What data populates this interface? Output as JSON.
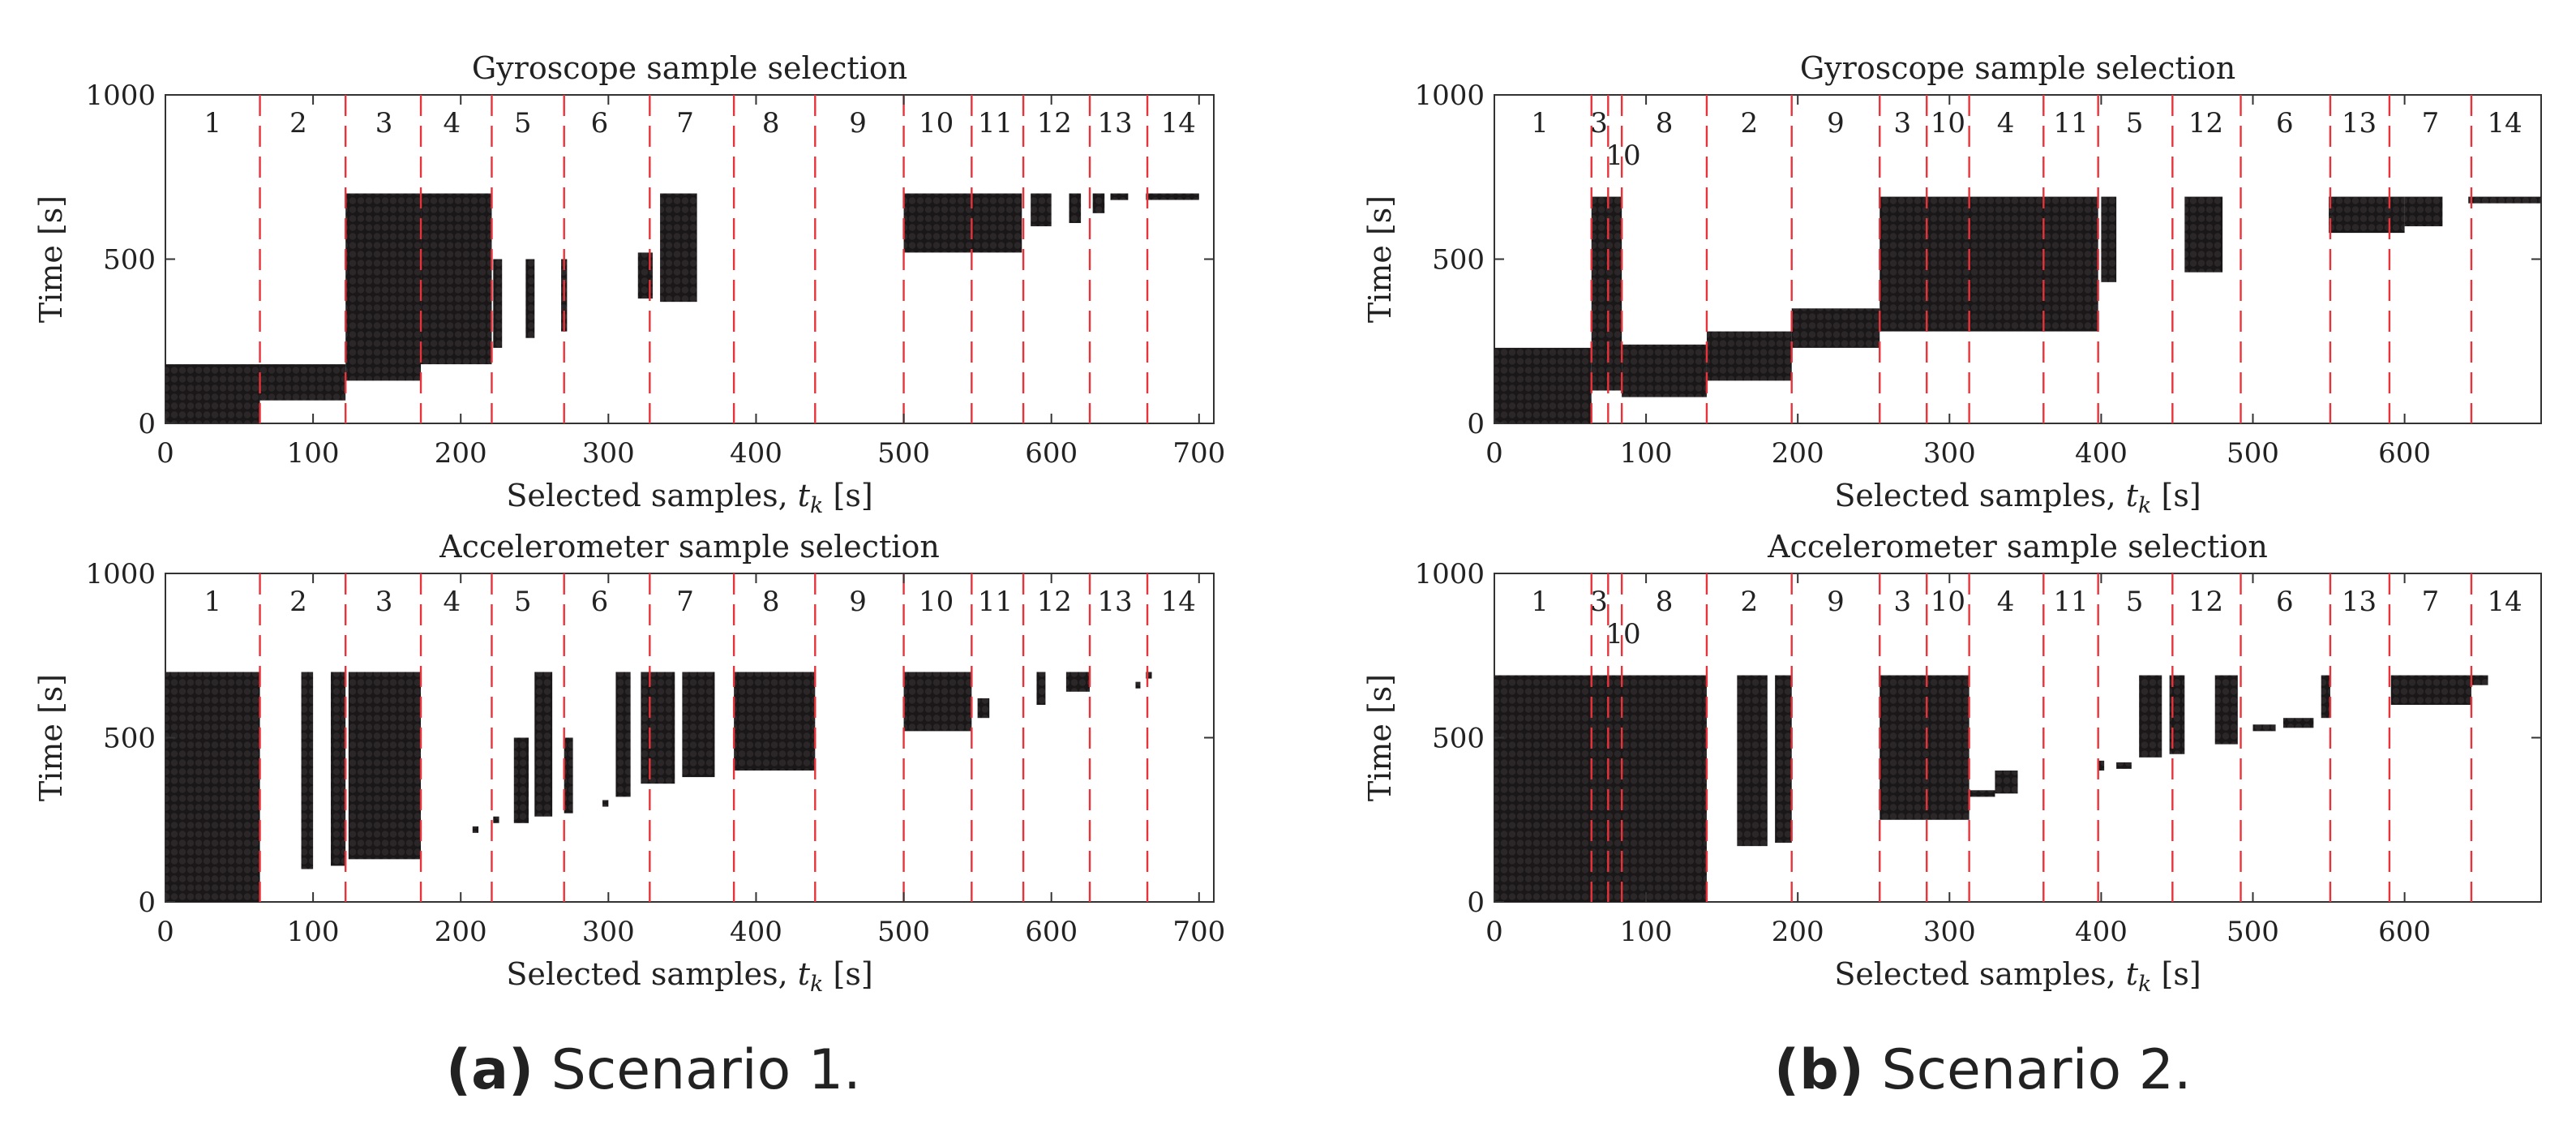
{
  "captions": [
    {
      "label": "(a)",
      "text": "Scenario 1."
    },
    {
      "label": "(b)",
      "text": "Scenario 2."
    }
  ],
  "chart_data": [
    {
      "type": "scatter",
      "scenario": "Scenario 1",
      "title": "Gyroscope sample selection",
      "xlabel": "Selected samples, t_k [s]",
      "ylabel": "Time [s]",
      "xlim": [
        0,
        710
      ],
      "ylim": [
        0,
        1000
      ],
      "xticks": [
        0,
        100,
        200,
        300,
        400,
        500,
        600,
        700
      ],
      "yticks": [
        0,
        500,
        1000
      ],
      "boundaries": [
        64,
        122,
        173,
        221,
        270,
        328,
        385,
        440,
        500,
        546,
        581,
        626,
        665
      ],
      "segment_labels": [
        {
          "label": "1",
          "x": 32
        },
        {
          "label": "2",
          "x": 90
        },
        {
          "label": "3",
          "x": 148
        },
        {
          "label": "4",
          "x": 194
        },
        {
          "label": "5",
          "x": 242
        },
        {
          "label": "6",
          "x": 294
        },
        {
          "label": "7",
          "x": 352
        },
        {
          "label": "8",
          "x": 410
        },
        {
          "label": "9",
          "x": 469
        },
        {
          "label": "10",
          "x": 522
        },
        {
          "label": "11",
          "x": 562
        },
        {
          "label": "12",
          "x": 602
        },
        {
          "label": "13",
          "x": 643
        },
        {
          "label": "14",
          "x": 686
        }
      ],
      "blocks": [
        [
          0,
          64,
          0,
          180
        ],
        [
          64,
          122,
          70,
          180
        ],
        [
          122,
          173,
          130,
          700
        ],
        [
          173,
          221,
          180,
          700
        ],
        [
          222,
          228,
          230,
          500
        ],
        [
          244,
          250,
          260,
          500
        ],
        [
          268,
          272,
          280,
          500
        ],
        [
          320,
          330,
          380,
          520
        ],
        [
          335,
          360,
          370,
          700
        ],
        [
          500,
          580,
          520,
          700
        ],
        [
          586,
          600,
          600,
          700
        ],
        [
          612,
          620,
          610,
          700
        ],
        [
          628,
          636,
          640,
          700
        ],
        [
          640,
          652,
          680,
          700
        ],
        [
          664,
          700,
          690,
          700
        ]
      ]
    },
    {
      "type": "scatter",
      "scenario": "Scenario 1",
      "title": "Accelerometer sample selection",
      "xlabel": "Selected samples, t_k [s]",
      "ylabel": "Time [s]",
      "xlim": [
        0,
        710
      ],
      "ylim": [
        0,
        1000
      ],
      "xticks": [
        0,
        100,
        200,
        300,
        400,
        500,
        600,
        700
      ],
      "yticks": [
        0,
        500,
        1000
      ],
      "boundaries": [
        64,
        122,
        173,
        221,
        270,
        328,
        385,
        440,
        500,
        546,
        581,
        626,
        665
      ],
      "segment_labels": [
        {
          "label": "1",
          "x": 32
        },
        {
          "label": "2",
          "x": 90
        },
        {
          "label": "3",
          "x": 148
        },
        {
          "label": "4",
          "x": 194
        },
        {
          "label": "5",
          "x": 242
        },
        {
          "label": "6",
          "x": 294
        },
        {
          "label": "7",
          "x": 352
        },
        {
          "label": "8",
          "x": 410
        },
        {
          "label": "9",
          "x": 469
        },
        {
          "label": "10",
          "x": 522
        },
        {
          "label": "11",
          "x": 562
        },
        {
          "label": "12",
          "x": 602
        },
        {
          "label": "13",
          "x": 643
        },
        {
          "label": "14",
          "x": 686
        }
      ],
      "blocks": [
        [
          0,
          64,
          0,
          700
        ],
        [
          92,
          100,
          100,
          700
        ],
        [
          112,
          122,
          110,
          700
        ],
        [
          124,
          173,
          130,
          700
        ],
        [
          208,
          212,
          215,
          230
        ],
        [
          222,
          226,
          240,
          260
        ],
        [
          236,
          246,
          240,
          500
        ],
        [
          250,
          262,
          260,
          700
        ],
        [
          270,
          276,
          270,
          500
        ],
        [
          296,
          300,
          290,
          310
        ],
        [
          305,
          315,
          320,
          700
        ],
        [
          322,
          345,
          360,
          700
        ],
        [
          350,
          372,
          380,
          700
        ],
        [
          385,
          440,
          400,
          700
        ],
        [
          500,
          546,
          520,
          700
        ],
        [
          550,
          558,
          560,
          620
        ],
        [
          590,
          596,
          600,
          700
        ],
        [
          610,
          626,
          640,
          700
        ],
        [
          657,
          660,
          650,
          670
        ],
        [
          664,
          668,
          680,
          700
        ]
      ]
    },
    {
      "type": "scatter",
      "scenario": "Scenario 2",
      "title": "Gyroscope sample selection",
      "xlabel": "Selected samples, t_k [s]",
      "ylabel": "Time [s]",
      "xlim": [
        0,
        690
      ],
      "ylim": [
        0,
        1000
      ],
      "xticks": [
        0,
        100,
        200,
        300,
        400,
        500,
        600
      ],
      "yticks": [
        0,
        500,
        1000
      ],
      "boundaries": [
        64,
        75,
        84,
        140,
        196,
        254,
        285,
        313,
        362,
        398,
        447,
        492,
        551,
        590,
        644
      ],
      "segment_labels": [
        {
          "label": "1",
          "x": 30,
          "row": 0
        },
        {
          "label": "3",
          "x": 69,
          "row": 0
        },
        {
          "label": "10",
          "x": 85,
          "row": 1
        },
        {
          "label": "8",
          "x": 112,
          "row": 0
        },
        {
          "label": "2",
          "x": 168,
          "row": 0
        },
        {
          "label": "9",
          "x": 225,
          "row": 0
        },
        {
          "label": "3",
          "x": 269,
          "row": 0
        },
        {
          "label": "10",
          "x": 299,
          "row": 0
        },
        {
          "label": "4",
          "x": 337,
          "row": 0
        },
        {
          "label": "11",
          "x": 380,
          "row": 0
        },
        {
          "label": "5",
          "x": 422,
          "row": 0
        },
        {
          "label": "12",
          "x": 469,
          "row": 0
        },
        {
          "label": "6",
          "x": 521,
          "row": 0
        },
        {
          "label": "13",
          "x": 570,
          "row": 0
        },
        {
          "label": "7",
          "x": 617,
          "row": 0
        },
        {
          "label": "14",
          "x": 666,
          "row": 0
        }
      ],
      "blocks": [
        [
          0,
          64,
          0,
          230
        ],
        [
          64,
          84,
          100,
          690
        ],
        [
          84,
          140,
          80,
          240
        ],
        [
          140,
          196,
          130,
          280
        ],
        [
          196,
          254,
          230,
          350
        ],
        [
          254,
          398,
          280,
          690
        ],
        [
          400,
          410,
          430,
          690
        ],
        [
          455,
          480,
          460,
          690
        ],
        [
          550,
          600,
          580,
          690
        ],
        [
          600,
          625,
          600,
          690
        ],
        [
          642,
          690,
          670,
          690
        ]
      ]
    },
    {
      "type": "scatter",
      "scenario": "Scenario 2",
      "title": "Accelerometer sample selection",
      "xlabel": "Selected samples, t_k [s]",
      "ylabel": "Time [s]",
      "xlim": [
        0,
        690
      ],
      "ylim": [
        0,
        1000
      ],
      "xticks": [
        0,
        100,
        200,
        300,
        400,
        500,
        600
      ],
      "yticks": [
        0,
        500,
        1000
      ],
      "boundaries": [
        64,
        75,
        84,
        140,
        196,
        254,
        285,
        313,
        362,
        398,
        447,
        492,
        551,
        590,
        644
      ],
      "segment_labels": [
        {
          "label": "1",
          "x": 30,
          "row": 0
        },
        {
          "label": "3",
          "x": 69,
          "row": 0
        },
        {
          "label": "10",
          "x": 85,
          "row": 1
        },
        {
          "label": "8",
          "x": 112,
          "row": 0
        },
        {
          "label": "2",
          "x": 168,
          "row": 0
        },
        {
          "label": "9",
          "x": 225,
          "row": 0
        },
        {
          "label": "3",
          "x": 269,
          "row": 0
        },
        {
          "label": "10",
          "x": 299,
          "row": 0
        },
        {
          "label": "4",
          "x": 337,
          "row": 0
        },
        {
          "label": "11",
          "x": 380,
          "row": 0
        },
        {
          "label": "5",
          "x": 422,
          "row": 0
        },
        {
          "label": "12",
          "x": 469,
          "row": 0
        },
        {
          "label": "6",
          "x": 521,
          "row": 0
        },
        {
          "label": "13",
          "x": 570,
          "row": 0
        },
        {
          "label": "7",
          "x": 617,
          "row": 0
        },
        {
          "label": "14",
          "x": 666,
          "row": 0
        }
      ],
      "blocks": [
        [
          0,
          140,
          0,
          690
        ],
        [
          160,
          180,
          170,
          690
        ],
        [
          185,
          196,
          180,
          690
        ],
        [
          254,
          313,
          250,
          690
        ],
        [
          313,
          330,
          320,
          340
        ],
        [
          330,
          345,
          330,
          400
        ],
        [
          398,
          402,
          400,
          430
        ],
        [
          410,
          420,
          415,
          425
        ],
        [
          425,
          440,
          440,
          690
        ],
        [
          445,
          455,
          450,
          690
        ],
        [
          475,
          490,
          480,
          690
        ],
        [
          500,
          515,
          520,
          540
        ],
        [
          520,
          540,
          530,
          560
        ],
        [
          545,
          551,
          560,
          690
        ],
        [
          591,
          644,
          600,
          690
        ],
        [
          644,
          655,
          660,
          690
        ]
      ]
    }
  ]
}
